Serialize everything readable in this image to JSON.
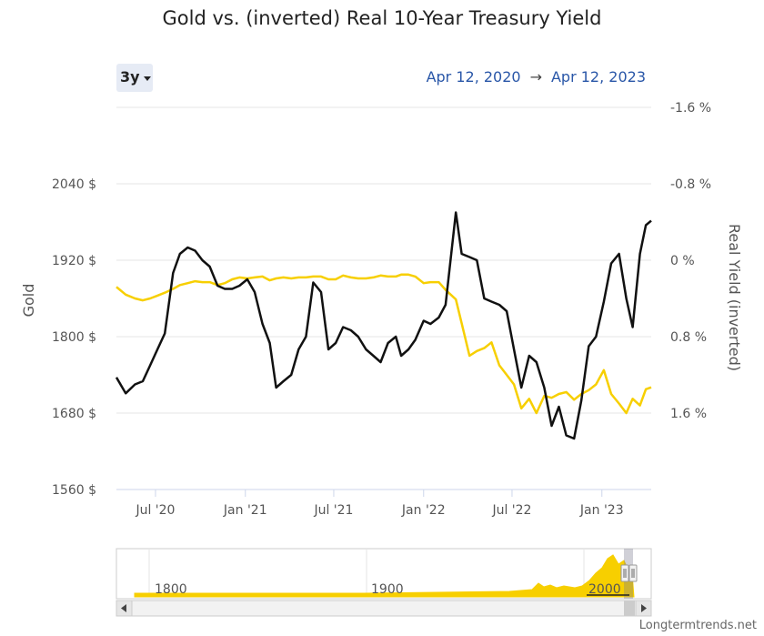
{
  "chart_data": {
    "type": "line",
    "title": "Gold vs. (inverted) Real 10-Year Treasury Yield",
    "range_selector": "3y",
    "date_from": "Apr 12, 2020",
    "date_to": "Apr 12, 2023",
    "date_arrow": "→",
    "x_ticks": [
      "Jul '20",
      "Jan '21",
      "Jul '21",
      "Jan '22",
      "Jul '22",
      "Jan '23"
    ],
    "y_left": {
      "label": "Gold",
      "ticks": [
        "1560 $",
        "1680 $",
        "1800 $",
        "1920 $",
        "2040 $"
      ],
      "range": [
        1560,
        2160
      ]
    },
    "y_right": {
      "label": "Real Yield (inverted)",
      "ticks": [
        "-1.6 %",
        "-0.8 %",
        "0 %",
        "0.8 %",
        "1.6 %"
      ],
      "range": [
        -1.6,
        2.4
      ],
      "inverted": true
    },
    "x": [
      "2020-04-12",
      "2020-05-01",
      "2020-05-20",
      "2020-06-05",
      "2020-06-20",
      "2020-07-05",
      "2020-07-20",
      "2020-08-06",
      "2020-08-20",
      "2020-09-05",
      "2020-09-20",
      "2020-10-05",
      "2020-10-20",
      "2020-11-05",
      "2020-11-20",
      "2020-12-05",
      "2020-12-20",
      "2021-01-05",
      "2021-01-20",
      "2021-02-05",
      "2021-02-20",
      "2021-03-05",
      "2021-03-20",
      "2021-04-05",
      "2021-04-20",
      "2021-05-05",
      "2021-05-20",
      "2021-06-05",
      "2021-06-20",
      "2021-07-05",
      "2021-07-20",
      "2021-08-05",
      "2021-08-20",
      "2021-09-05",
      "2021-09-20",
      "2021-10-05",
      "2021-10-20",
      "2021-11-05",
      "2021-11-16",
      "2021-12-01",
      "2021-12-15",
      "2022-01-01",
      "2022-01-15",
      "2022-02-01",
      "2022-02-15",
      "2022-03-08",
      "2022-03-20",
      "2022-04-05",
      "2022-04-20",
      "2022-05-05",
      "2022-05-20",
      "2022-06-05",
      "2022-06-20",
      "2022-07-05",
      "2022-07-20",
      "2022-08-05",
      "2022-08-20",
      "2022-09-05",
      "2022-09-20",
      "2022-10-05",
      "2022-10-20",
      "2022-11-05",
      "2022-11-20",
      "2022-12-05",
      "2022-12-20",
      "2023-01-05",
      "2023-01-20",
      "2023-02-05",
      "2023-02-20",
      "2023-03-05",
      "2023-03-20",
      "2023-04-01",
      "2023-04-12"
    ],
    "series": [
      {
        "name": "Gold",
        "axis": "left",
        "color": "#111111",
        "values": [
          1736,
          1711,
          1725,
          1730,
          1755,
          1780,
          1805,
          1900,
          1930,
          1940,
          1935,
          1920,
          1910,
          1880,
          1875,
          1875,
          1880,
          1890,
          1870,
          1820,
          1790,
          1720,
          1730,
          1740,
          1780,
          1800,
          1885,
          1870,
          1780,
          1790,
          1815,
          1810,
          1800,
          1780,
          1770,
          1760,
          1790,
          1800,
          1770,
          1780,
          1795,
          1825,
          1820,
          1830,
          1850,
          1995,
          1930,
          1925,
          1920,
          1860,
          1855,
          1850,
          1840,
          1780,
          1720,
          1770,
          1760,
          1720,
          1660,
          1690,
          1645,
          1640,
          1700,
          1785,
          1800,
          1855,
          1915,
          1930,
          1860,
          1815,
          1930,
          1975,
          1982
        ]
      },
      {
        "name": "Real Yield (inverted)",
        "axis": "right",
        "color": "#f7cf00",
        "values": [
          0.28,
          0.36,
          0.4,
          0.42,
          0.4,
          0.37,
          0.34,
          0.3,
          0.26,
          0.24,
          0.22,
          0.23,
          0.23,
          0.26,
          0.24,
          0.2,
          0.18,
          0.19,
          0.18,
          0.17,
          0.21,
          0.19,
          0.18,
          0.19,
          0.18,
          0.18,
          0.17,
          0.17,
          0.2,
          0.2,
          0.16,
          0.18,
          0.19,
          0.19,
          0.18,
          0.16,
          0.17,
          0.17,
          0.15,
          0.15,
          0.17,
          0.24,
          0.23,
          0.23,
          0.31,
          0.41,
          0.66,
          1.0,
          0.95,
          0.92,
          0.86,
          1.1,
          1.2,
          1.3,
          1.55,
          1.45,
          1.6,
          1.42,
          1.44,
          1.4,
          1.38,
          1.46,
          1.4,
          1.36,
          1.3,
          1.15,
          1.4,
          1.5,
          1.6,
          1.45,
          1.52,
          1.35,
          1.33
        ]
      }
    ],
    "navigator_ticks": [
      "1800",
      "1900",
      "2000"
    ],
    "grid": true,
    "legend": "none"
  },
  "footer": {
    "credit": "Longtermtrends.net"
  },
  "icons": {
    "range_caret": "caret-down-icon",
    "scroll_left": "arrow-left-icon",
    "scroll_right": "arrow-right-icon",
    "handle": "grip-handle-icon"
  }
}
